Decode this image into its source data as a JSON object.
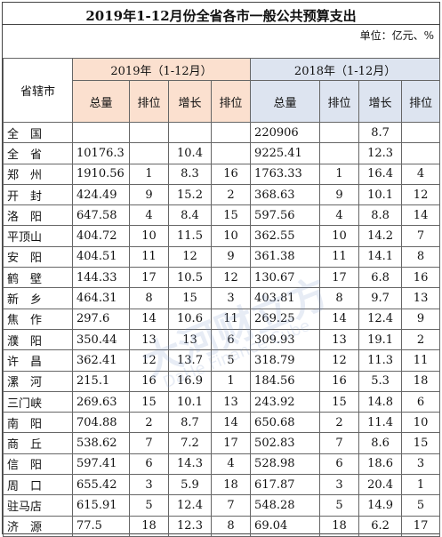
{
  "title": "2019年1-12月份全省各市一般公共预算支出",
  "unit": "单位：亿元、%",
  "header": {
    "region": "省辖市",
    "year2019": "2019年（1-12月）",
    "year2018": "2018年（1-12月）",
    "total": "总量",
    "rank": "排位",
    "growth": "增长"
  },
  "watermark": {
    "main": "大河财立方",
    "sub": "DaHe Finance Cube"
  },
  "rows": [
    {
      "region": "全　国",
      "t19": "",
      "r19": "",
      "g19": "",
      "gr19": "",
      "t18": "220906",
      "r18": "",
      "g18": "8.7",
      "gr18": ""
    },
    {
      "region": "全　省",
      "t19": "10176.3",
      "r19": "",
      "g19": "10.4",
      "gr19": "",
      "t18": "9225.41",
      "r18": "",
      "g18": "12.3",
      "gr18": ""
    },
    {
      "region": "郑　州",
      "t19": "1910.56",
      "r19": "1",
      "g19": "8.3",
      "gr19": "16",
      "t18": "1763.33",
      "r18": "1",
      "g18": "16.4",
      "gr18": "4"
    },
    {
      "region": "开　封",
      "t19": "424.49",
      "r19": "9",
      "g19": "15.2",
      "gr19": "2",
      "t18": "368.63",
      "r18": "9",
      "g18": "10.1",
      "gr18": "12"
    },
    {
      "region": "洛　阳",
      "t19": "647.58",
      "r19": "4",
      "g19": "8.4",
      "gr19": "15",
      "t18": "597.56",
      "r18": "4",
      "g18": "8.8",
      "gr18": "14"
    },
    {
      "region": "平顶山",
      "t19": "404.72",
      "r19": "10",
      "g19": "11.5",
      "gr19": "10",
      "t18": "362.55",
      "r18": "10",
      "g18": "14.2",
      "gr18": "7"
    },
    {
      "region": "安　阳",
      "t19": "404.51",
      "r19": "11",
      "g19": "12",
      "gr19": "9",
      "t18": "361.38",
      "r18": "11",
      "g18": "14.1",
      "gr18": "8"
    },
    {
      "region": "鹤　壁",
      "t19": "144.33",
      "r19": "17",
      "g19": "10.5",
      "gr19": "12",
      "t18": "130.67",
      "r18": "17",
      "g18": "6.8",
      "gr18": "16"
    },
    {
      "region": "新　乡",
      "t19": "464.31",
      "r19": "8",
      "g19": "15",
      "gr19": "3",
      "t18": "403.81",
      "r18": "8",
      "g18": "9.7",
      "gr18": "13"
    },
    {
      "region": "焦　作",
      "t19": "297.6",
      "r19": "14",
      "g19": "10.6",
      "gr19": "11",
      "t18": "269.25",
      "r18": "14",
      "g18": "12.4",
      "gr18": "9"
    },
    {
      "region": "濮　阳",
      "t19": "350.44",
      "r19": "13",
      "g19": "13",
      "gr19": "6",
      "t18": "309.93",
      "r18": "13",
      "g18": "19.1",
      "gr18": "2"
    },
    {
      "region": "许　昌",
      "t19": "362.41",
      "r19": "12",
      "g19": "13.7",
      "gr19": "5",
      "t18": "318.79",
      "r18": "12",
      "g18": "11.3",
      "gr18": "11"
    },
    {
      "region": "漯　河",
      "t19": "215.1",
      "r19": "16",
      "g19": "16.9",
      "gr19": "1",
      "t18": "184.56",
      "r18": "16",
      "g18": "5.3",
      "gr18": "18"
    },
    {
      "region": "三门峡",
      "t19": "269.63",
      "r19": "15",
      "g19": "10.1",
      "gr19": "13",
      "t18": "243.92",
      "r18": "15",
      "g18": "14.8",
      "gr18": "6"
    },
    {
      "region": "南　阳",
      "t19": "704.88",
      "r19": "2",
      "g19": "8.7",
      "gr19": "14",
      "t18": "650.68",
      "r18": "2",
      "g18": "11.4",
      "gr18": "10"
    },
    {
      "region": "商　丘",
      "t19": "538.62",
      "r19": "7",
      "g19": "7.2",
      "gr19": "17",
      "t18": "502.83",
      "r18": "7",
      "g18": "8.6",
      "gr18": "15"
    },
    {
      "region": "信　阳",
      "t19": "597.41",
      "r19": "6",
      "g19": "14.3",
      "gr19": "4",
      "t18": "528.98",
      "r18": "6",
      "g18": "18.6",
      "gr18": "3"
    },
    {
      "region": "周　口",
      "t19": "655.42",
      "r19": "3",
      "g19": "5.9",
      "gr19": "18",
      "t18": "617.87",
      "r18": "3",
      "g18": "20.4",
      "gr18": "1"
    },
    {
      "region": "驻马店",
      "t19": "615.91",
      "r19": "5",
      "g19": "12.4",
      "gr19": "7",
      "t18": "548.28",
      "r18": "5",
      "g18": "14.9",
      "gr18": "5"
    },
    {
      "region": "济　源",
      "t19": "77.5",
      "r19": "18",
      "g19": "12.3",
      "gr19": "8",
      "t18": "69.04",
      "r18": "18",
      "g18": "6.2",
      "gr18": "17"
    }
  ]
}
